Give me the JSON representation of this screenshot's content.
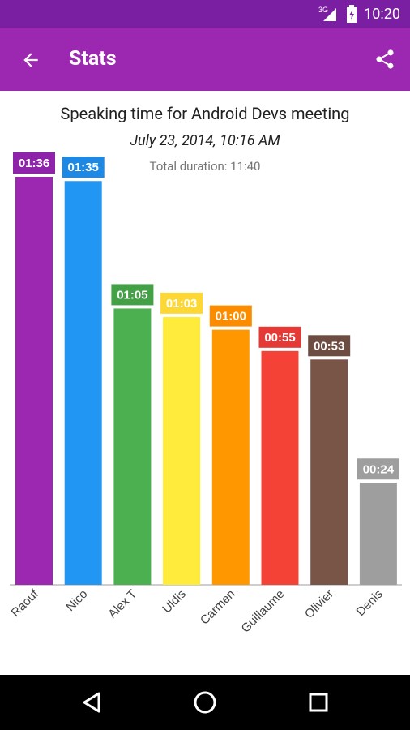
{
  "status_bar": {
    "network": "3G",
    "time": "10:20"
  },
  "app_bar": {
    "title": "Stats",
    "back_icon": "arrow-back-icon",
    "share_icon": "share-icon"
  },
  "meeting": {
    "title": "Speaking time for Android Devs meeting",
    "date": "July 23, 2014, 10:16 AM",
    "total": "Total duration: 11:40"
  },
  "chart_data": {
    "type": "bar",
    "categories": [
      "Raouf",
      "Nico",
      "Alex T",
      "Uldis",
      "Carmen",
      "Guillaume",
      "Olivier",
      "Denis"
    ],
    "values": [
      96,
      95,
      65,
      63,
      60,
      55,
      53,
      24
    ],
    "value_labels": [
      "01:36",
      "01:35",
      "01:05",
      "01:03",
      "01:00",
      "00:55",
      "00:53",
      "00:24"
    ],
    "unit": "seconds",
    "colors": [
      "#9c27b0",
      "#2196f3",
      "#4caf50",
      "#ffeb3b",
      "#ff9800",
      "#f44336",
      "#795548",
      "#9e9e9e"
    ],
    "label_bg_colors": [
      "#8e24aa",
      "#1e88e5",
      "#43a047",
      "#fdd835",
      "#fb8c00",
      "#e53935",
      "#6d4c41",
      "#9e9e9e"
    ],
    "ylim": [
      0,
      96
    ]
  },
  "nav_bar": {
    "back": "nav-back-icon",
    "home": "nav-home-icon",
    "recents": "nav-recents-icon"
  }
}
